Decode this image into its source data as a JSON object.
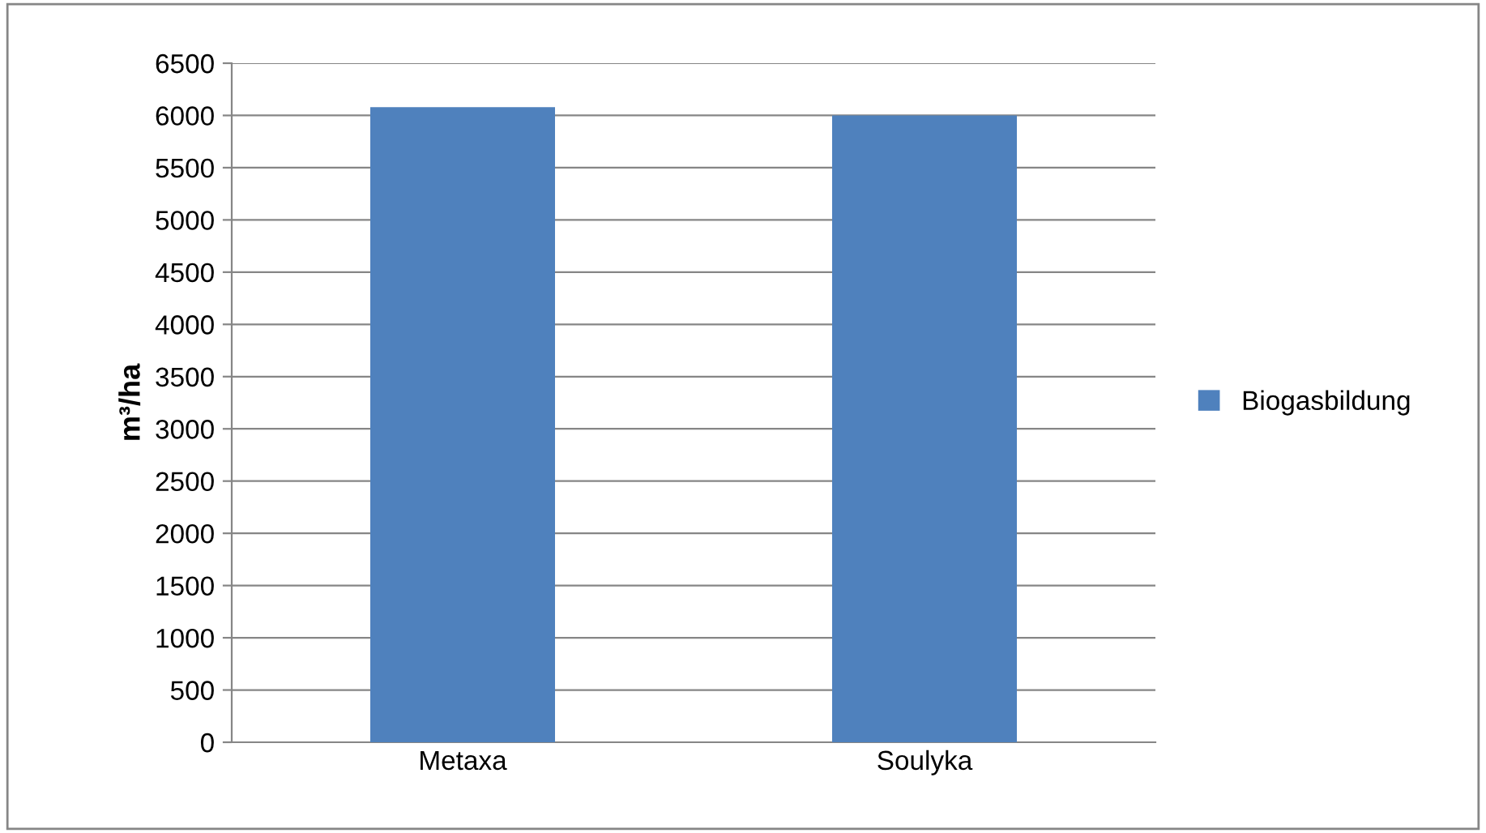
{
  "chart_data": {
    "type": "bar",
    "ylabel": "m³/ha",
    "categories": [
      "Metaxa",
      "Soulyka"
    ],
    "series": [
      {
        "name": "Biogasbildung",
        "color": "#4f81bd",
        "values": [
          6080,
          6000
        ]
      }
    ],
    "ylim": [
      0,
      6500
    ],
    "yticks": [
      0,
      500,
      1000,
      1500,
      2000,
      2500,
      3000,
      3500,
      4000,
      4500,
      5000,
      5500,
      6000,
      6500
    ],
    "grid": "y",
    "legend": "right"
  }
}
